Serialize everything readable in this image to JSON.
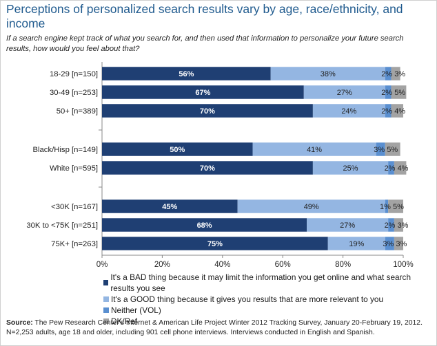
{
  "header": {
    "title": "Perceptions of personalized search results vary by age, race/ethnicity, and income",
    "subtitle": "If a search engine kept track of what you search for, and then used that information to personalize your future search results, how would you feel about that?"
  },
  "chart_data": {
    "type": "bar",
    "orientation": "horizontal",
    "stacked": true,
    "categories": [
      "18-29 [n=150]",
      "30-49 [n=253]",
      "50+ [n=389]",
      "Black/Hisp [n=149]",
      "White [n=595]",
      "<30K [n=167]",
      "30K to <75K [n=251]",
      "75K+ [n=263]"
    ],
    "groups": [
      [
        0,
        1,
        2
      ],
      [
        3,
        4
      ],
      [
        5,
        6,
        7
      ]
    ],
    "series": [
      {
        "name": "It's a BAD thing because it may limit the information you get online and what search results you see",
        "color": "#1f3f73",
        "values": [
          56,
          67,
          70,
          50,
          70,
          45,
          68,
          75
        ]
      },
      {
        "name": "It's a GOOD thing because it gives you results that are more relevant to you",
        "color": "#94b6e2",
        "values": [
          38,
          27,
          24,
          41,
          25,
          49,
          27,
          19
        ]
      },
      {
        "name": "Neither (VOL)",
        "color": "#5a8fd0",
        "values": [
          2,
          2,
          2,
          3,
          2,
          1,
          2,
          3
        ]
      },
      {
        "name": "DK/Ref",
        "color": "#a3a3a3",
        "values": [
          3,
          5,
          4,
          5,
          4,
          5,
          3,
          3
        ]
      }
    ],
    "xlim": [
      0,
      100
    ],
    "xticks": [
      "0%",
      "20%",
      "40%",
      "60%",
      "80%",
      "100%"
    ],
    "legend_position": "bottom"
  },
  "footnote": {
    "source_label": "Source:",
    "text": "The Pew Research Center's Internet & American Life Project Winter 2012 Tracking Survey, January 20-February 19, 2012. N=2,253 adults, age 18 and older, including 901 cell phone interviews. Interviews conducted in English and Spanish."
  }
}
